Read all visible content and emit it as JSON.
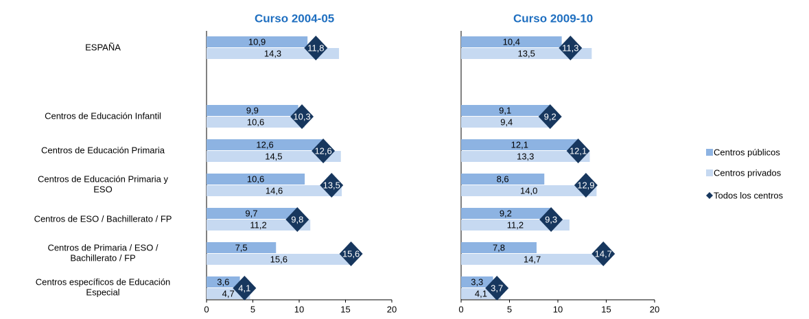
{
  "chart_data": [
    {
      "type": "bar",
      "title": "Curso 2004-05",
      "categories": [
        "ESPAÑA",
        "Centros de Educación Infantil",
        "Centros de Educación Primaria",
        "Centros de Educación Primaria  y\nESO",
        "Centros de ESO  / Bachillerato / FP",
        "Centros de Primaria  / ESO /\nBachillerato / FP",
        "Centros específicos de Educación\nEspecial"
      ],
      "series": [
        {
          "name": "Centros públicos",
          "color": "#8db3e2",
          "values": [
            10.9,
            9.9,
            12.6,
            10.6,
            9.7,
            7.5,
            3.6
          ],
          "value_labels": [
            "10,9",
            "9,9",
            "12,6",
            "10,6",
            "9,7",
            "7,5",
            "3,6"
          ]
        },
        {
          "name": "Centros privados",
          "color": "#c6d9f1",
          "values": [
            14.3,
            10.6,
            14.5,
            14.6,
            11.2,
            15.6,
            4.7
          ],
          "value_labels": [
            "14,3",
            "10,6",
            "14,5",
            "14,6",
            "11,2",
            "15,6",
            "4,7"
          ]
        },
        {
          "name": "Todos los centros",
          "color": "#17375e",
          "marker": "diamond",
          "values": [
            11.8,
            10.3,
            12.6,
            13.5,
            9.8,
            15.6,
            4.1
          ],
          "value_labels": [
            "11,8",
            "10,3",
            "12,6",
            "13,5",
            "9,8",
            "15,6",
            "4,1"
          ]
        }
      ],
      "xlim": [
        0,
        20
      ],
      "xticks": [
        0,
        5,
        10,
        15,
        20
      ]
    },
    {
      "type": "bar",
      "title": "Curso 2009-10",
      "series": [
        {
          "color": "#8db3e2",
          "values": [
            10.4,
            9.1,
            12.1,
            8.6,
            9.2,
            7.8,
            3.3
          ],
          "value_labels": [
            "10,4",
            "9,1",
            "12,1",
            "8,6",
            "9,2",
            "7,8",
            "3,3"
          ]
        },
        {
          "color": "#c6d9f1",
          "values": [
            13.5,
            9.4,
            13.3,
            14.0,
            11.2,
            14.7,
            4.1
          ],
          "value_labels": [
            "13,5",
            "9,4",
            "13,3",
            "14,0",
            "11,2",
            "14,7",
            "4,1"
          ]
        },
        {
          "color": "#17375e",
          "marker": "diamond",
          "values": [
            11.3,
            9.2,
            12.1,
            12.9,
            9.3,
            14.7,
            3.7
          ],
          "value_labels": [
            "11,3",
            "9,2",
            "12,1",
            "12,9",
            "9,3",
            "14,7",
            "3,7"
          ]
        }
      ],
      "xlim": [
        0,
        20
      ],
      "xticks": [
        0,
        5,
        10,
        15,
        20
      ]
    }
  ]
}
